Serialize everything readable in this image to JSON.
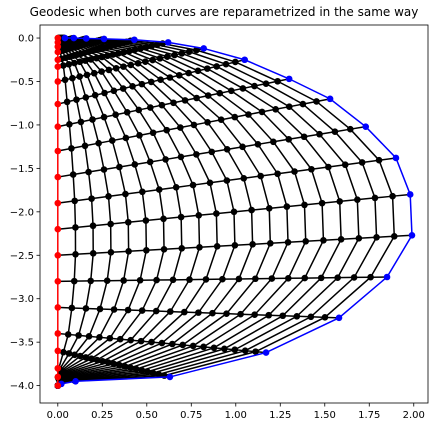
{
  "chart_data": {
    "type": "line",
    "title": "Geodesic when both curves are reparametrized in the same way",
    "xlabel": "",
    "ylabel": "",
    "xlim": [
      -0.1,
      2.08
    ],
    "ylim": [
      -4.2,
      0.15
    ],
    "xticks": [
      0.0,
      0.25,
      0.5,
      0.75,
      1.0,
      1.25,
      1.5,
      1.75,
      2.0
    ],
    "xtick_labels": [
      "0.00",
      "0.25",
      "0.50",
      "0.75",
      "1.00",
      "1.25",
      "1.50",
      "1.75",
      "2.00"
    ],
    "yticks": [
      0.0,
      -0.5,
      -1.0,
      -1.5,
      -2.0,
      -2.5,
      -3.0,
      -3.5,
      -4.0
    ],
    "ytick_labels": [
      "0.0",
      "−0.5",
      "−1.0",
      "−1.5",
      "−2.0",
      "−2.5",
      "−3.0",
      "−3.5",
      "−4.0"
    ],
    "grid": false,
    "legend": "none",
    "t_samples": [
      0.0,
      0.015,
      0.03,
      0.05,
      0.07,
      0.1,
      0.15,
      0.22,
      0.3,
      0.38,
      0.46,
      0.54,
      0.62,
      0.7,
      0.78,
      0.84,
      0.89,
      0.93,
      0.96,
      0.98,
      1.0
    ],
    "start_curve": {
      "color": "#0000ff",
      "points": [
        [
          0.04,
          0.0
        ],
        [
          0.09,
          0.0
        ],
        [
          0.16,
          -0.005
        ],
        [
          0.26,
          -0.01
        ],
        [
          0.43,
          -0.02
        ],
        [
          0.62,
          -0.05
        ],
        [
          0.82,
          -0.12
        ],
        [
          1.05,
          -0.25
        ],
        [
          1.3,
          -0.47
        ],
        [
          1.53,
          -0.7
        ],
        [
          1.73,
          -1.02
        ],
        [
          1.9,
          -1.38
        ],
        [
          1.98,
          -1.8
        ],
        [
          1.99,
          -2.27
        ],
        [
          1.85,
          -2.75
        ],
        [
          1.58,
          -3.22
        ],
        [
          1.17,
          -3.62
        ],
        [
          0.63,
          -3.9
        ],
        [
          0.1,
          -3.95
        ],
        [
          0.02,
          -3.98
        ],
        [
          0.0,
          -4.0
        ]
      ]
    },
    "end_curve": {
      "color": "#ff0000",
      "points": [
        [
          0.0,
          0.0
        ],
        [
          0.0,
          -0.05
        ],
        [
          0.0,
          -0.1
        ],
        [
          0.0,
          -0.16
        ],
        [
          0.0,
          -0.25
        ],
        [
          0.0,
          -0.33
        ],
        [
          0.0,
          -0.5
        ],
        [
          0.0,
          -0.76
        ],
        [
          0.0,
          -1.02
        ],
        [
          0.0,
          -1.3
        ],
        [
          0.0,
          -1.6
        ],
        [
          0.0,
          -1.9
        ],
        [
          0.0,
          -2.2
        ],
        [
          0.0,
          -2.5
        ],
        [
          0.0,
          -2.8
        ],
        [
          0.0,
          -3.1
        ],
        [
          0.0,
          -3.4
        ],
        [
          0.0,
          -3.6
        ],
        [
          0.0,
          -3.8
        ],
        [
          0.0,
          -3.9
        ],
        [
          0.0,
          -4.0
        ]
      ]
    },
    "geodesic_steps": 21,
    "geodesic_color": "#000000"
  }
}
